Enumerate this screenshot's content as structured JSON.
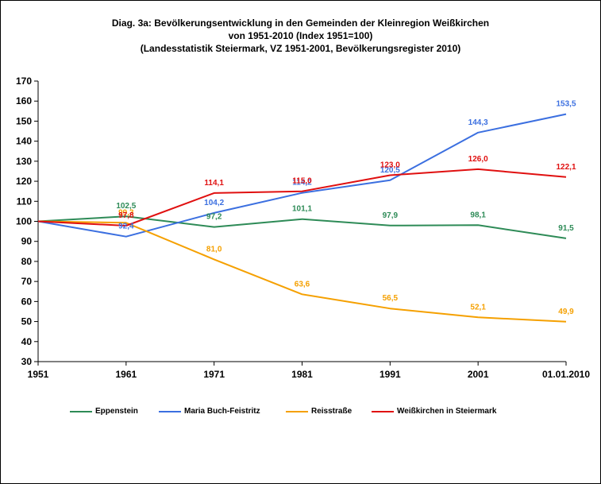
{
  "chart_data": {
    "type": "line",
    "title_lines": [
      "Diag. 3a: Bevölkerungsentwicklung  in den Gemeinden der Kleinregion Weißkirchen",
      "von 1951-2010  (Index 1951=100)",
      "(Landesstatistik  Steiermark,  VZ 1951-2001,  Bevölkerungsregister  2010)"
    ],
    "categories": [
      "1951",
      "1961",
      "1971",
      "1981",
      "1991",
      "2001",
      "01.01.2010"
    ],
    "ylim": [
      30,
      170
    ],
    "yticks": [
      "30",
      "40",
      "50",
      "60",
      "70",
      "80",
      "90",
      "100",
      "110",
      "120",
      "130",
      "140",
      "150",
      "160",
      "170"
    ],
    "grid": false,
    "legend_position": "bottom",
    "series": [
      {
        "name": "Eppenstein",
        "color": "#2e8b57",
        "values": [
          100,
          102.5,
          97.2,
          101.1,
          97.9,
          98.1,
          91.5
        ],
        "labels": [
          "",
          "102,5",
          "97,2",
          "101,1",
          "97,9",
          "98,1",
          "91,5"
        ]
      },
      {
        "name": "Maria Buch-Feistritz",
        "color": "#3b6fe0",
        "values": [
          100,
          92.4,
          104.2,
          114.2,
          120.5,
          144.3,
          153.5
        ],
        "labels": [
          "",
          "92,4",
          "104,2",
          "114,2",
          "120,5",
          "144,3",
          "153,5"
        ]
      },
      {
        "name": "Reisstraße",
        "color": "#f5a000",
        "values": [
          100,
          99.3,
          81.0,
          63.6,
          56.5,
          52.1,
          49.9
        ],
        "labels": [
          "",
          "99,3",
          "81,0",
          "63,6",
          "56,5",
          "52,1",
          "49,9"
        ]
      },
      {
        "name": "Weißkirchen in Steiermark",
        "color": "#e01010",
        "values": [
          100,
          97.8,
          114.1,
          115.0,
          123.0,
          126.0,
          122.1
        ],
        "labels": [
          "",
          "97,8",
          "114,1",
          "115,0",
          "123,0",
          "126,0",
          "122,1"
        ]
      }
    ]
  }
}
